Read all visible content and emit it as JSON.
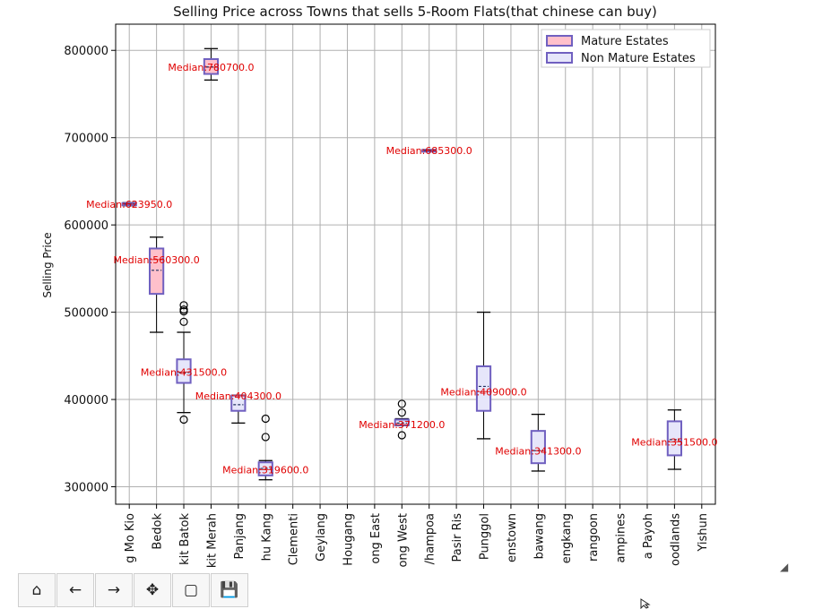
{
  "chart_data": {
    "type": "box",
    "title": "Selling Price across Towns that sells 5-Room Flats(that chinese can buy)",
    "xlabel": "",
    "ylabel": "Selling Price",
    "ylim": [
      280000,
      830000
    ],
    "yticks": [
      300000,
      400000,
      500000,
      600000,
      700000,
      800000
    ],
    "ytick_labels": [
      "300000",
      "400000",
      "500000",
      "600000",
      "700000",
      "800000"
    ],
    "grid": true,
    "legend": {
      "position": "top-right",
      "entries": [
        {
          "label": "Mature Estates",
          "color": "#ffc0cb"
        },
        {
          "label": "Non Mature Estates",
          "color": "#e6e6fa"
        }
      ]
    },
    "categories": [
      {
        "label": "g Mo Kio",
        "group": "mature"
      },
      {
        "label": "Bedok",
        "group": "mature"
      },
      {
        "label": "kit Batok",
        "group": "non"
      },
      {
        "label": "kit Merah",
        "group": "mature"
      },
      {
        "label": "Panjang",
        "group": "non"
      },
      {
        "label": "hu Kang",
        "group": "non"
      },
      {
        "label": "Clementi",
        "group": "mature"
      },
      {
        "label": "Geylang",
        "group": "mature"
      },
      {
        "label": "Hougang",
        "group": "non"
      },
      {
        "label": "ong East",
        "group": "non"
      },
      {
        "label": "ong West",
        "group": "non"
      },
      {
        "label": "/hampoa",
        "group": "mature"
      },
      {
        "label": "Pasir Ris",
        "group": "mature"
      },
      {
        "label": "Punggol",
        "group": "non"
      },
      {
        "label": "enstown",
        "group": "mature"
      },
      {
        "label": "bawang",
        "group": "non"
      },
      {
        "label": "engkang",
        "group": "non"
      },
      {
        "label": "rangoon",
        "group": "mature"
      },
      {
        "label": "ampines",
        "group": "mature"
      },
      {
        "label": "a Payoh",
        "group": "mature"
      },
      {
        "label": "oodlands",
        "group": "non"
      },
      {
        "label": "Yishun",
        "group": "non"
      }
    ],
    "boxes": [
      {
        "index": 0,
        "group": "mature",
        "whislo": 622000,
        "q1": 622500,
        "median": 623950,
        "mean": 623950,
        "q3": 625000,
        "whishi": 625500,
        "fliers": [],
        "annotation": "Median:623950.0"
      },
      {
        "index": 1,
        "group": "mature",
        "whislo": 477000,
        "q1": 521000,
        "median": 560300,
        "mean": 548000,
        "q3": 573000,
        "whishi": 586000,
        "fliers": [],
        "annotation": "Median:560300.0"
      },
      {
        "index": 2,
        "group": "non",
        "whislo": 385000,
        "q1": 419000,
        "median": 431500,
        "mean": 430500,
        "q3": 446000,
        "whishi": 477000,
        "fliers": [
          377000,
          489000,
          501000,
          503000,
          508000
        ],
        "annotation": "Median:431500.0"
      },
      {
        "index": 3,
        "group": "mature",
        "whislo": 766000,
        "q1": 773000,
        "median": 780700,
        "mean": 781000,
        "q3": 790000,
        "whishi": 802000,
        "fliers": [],
        "annotation": "Median:780700.0"
      },
      {
        "index": 4,
        "group": "non",
        "whislo": 373000,
        "q1": 387000,
        "median": 404300,
        "mean": 394000,
        "q3": 404500,
        "whishi": 405000,
        "fliers": [],
        "annotation": "Median:404300.0"
      },
      {
        "index": 5,
        "group": "non",
        "whislo": 308000,
        "q1": 313000,
        "median": 319600,
        "mean": 321000,
        "q3": 328000,
        "whishi": 330000,
        "fliers": [
          357000,
          378000
        ],
        "annotation": "Median:319600.0"
      },
      {
        "index": 10,
        "group": "non",
        "whislo": 370000,
        "q1": 370500,
        "median": 371200,
        "mean": 373000,
        "q3": 377000,
        "whishi": 378000,
        "fliers": [
          359000,
          385000,
          395000
        ],
        "annotation": "Median:371200.0"
      },
      {
        "index": 11,
        "group": "mature",
        "whislo": 684500,
        "q1": 684800,
        "median": 685300,
        "mean": 685300,
        "q3": 686000,
        "whishi": 686300,
        "fliers": [],
        "annotation": "Median:685300.0"
      },
      {
        "index": 13,
        "group": "non",
        "whislo": 355000,
        "q1": 387000,
        "median": 409000,
        "mean": 415000,
        "q3": 438000,
        "whishi": 500000,
        "fliers": [],
        "annotation": "Median:409000.0"
      },
      {
        "index": 15,
        "group": "non",
        "whislo": 318000,
        "q1": 327000,
        "median": 341300,
        "mean": 341500,
        "q3": 364000,
        "whishi": 383000,
        "fliers": [],
        "annotation": "Median:341300.0"
      },
      {
        "index": 20,
        "group": "non",
        "whislo": 320000,
        "q1": 336000,
        "median": 351500,
        "mean": 354000,
        "q3": 375000,
        "whishi": 388000,
        "fliers": [],
        "annotation": "Median:351500.0"
      }
    ]
  },
  "colors": {
    "mature_fill": "#ffc0cb",
    "non_fill": "#e6e6fa",
    "box_edge": "#7060c0",
    "median_line": "#e03030",
    "mean_line": "#203060",
    "annotation": "#e00000",
    "grid": "#b0b0b0"
  },
  "toolbar": {
    "buttons": [
      {
        "name": "home-button",
        "icon": "home-icon",
        "glyph": "⌂"
      },
      {
        "name": "back-button",
        "icon": "arrow-left-icon",
        "glyph": "←"
      },
      {
        "name": "forward-button",
        "icon": "arrow-right-icon",
        "glyph": "→"
      },
      {
        "name": "pan-button",
        "icon": "move-icon",
        "glyph": "✥"
      },
      {
        "name": "zoom-button",
        "icon": "zoom-rect-icon",
        "glyph": "▢"
      },
      {
        "name": "save-button",
        "icon": "floppy-icon",
        "glyph": "💾"
      }
    ]
  }
}
